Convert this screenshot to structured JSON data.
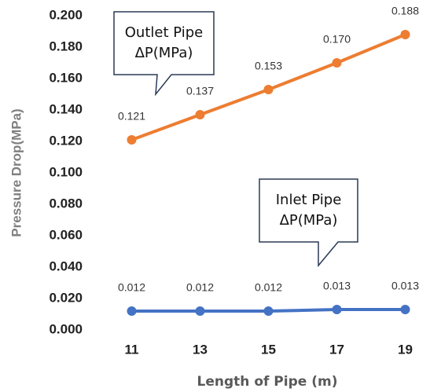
{
  "chart_data": {
    "type": "line",
    "x_label": "Length of Pipe (m)",
    "y_label": "Pressure Drop(MPa)",
    "categories": [
      "11",
      "13",
      "15",
      "17",
      "19"
    ],
    "series": [
      {
        "name": "Outlet Pipe ΔP(MPa)",
        "color": "#ED7D31",
        "values": [
          0.121,
          0.137,
          0.153,
          0.17,
          0.188
        ],
        "value_labels": [
          "0.121",
          "0.137",
          "0.153",
          "0.170",
          "0.188"
        ]
      },
      {
        "name": "Inlet Pipe ΔP(MPa)",
        "color": "#4472C4",
        "values": [
          0.012,
          0.012,
          0.012,
          0.013,
          0.013
        ],
        "value_labels": [
          "0.012",
          "0.012",
          "0.012",
          "0.013",
          "0.013"
        ]
      }
    ],
    "ylim": [
      0,
      0.2
    ],
    "yticks": [
      {
        "value": 0,
        "label": "0.000"
      },
      {
        "value": 0.02,
        "label": "0.020"
      },
      {
        "value": 0.04,
        "label": "0.040"
      },
      {
        "value": 0.06,
        "label": "0.060"
      },
      {
        "value": 0.08,
        "label": "0.080"
      },
      {
        "value": 0.1,
        "label": "0.100"
      },
      {
        "value": 0.12,
        "label": "0.120"
      },
      {
        "value": 0.14,
        "label": "0.140"
      },
      {
        "value": 0.16,
        "label": "0.160"
      },
      {
        "value": 0.18,
        "label": "0.180"
      },
      {
        "value": 0.2,
        "label": "0.200"
      }
    ],
    "grid": false
  }
}
